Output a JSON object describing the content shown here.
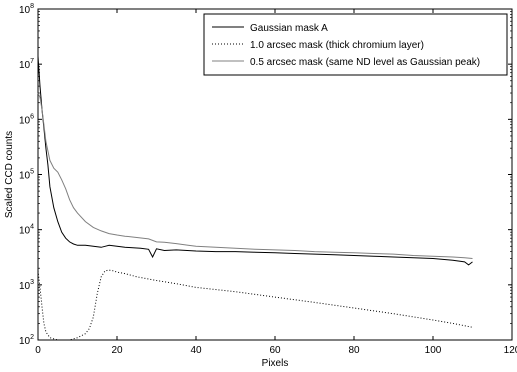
{
  "chart_data": {
    "type": "line",
    "xlabel": "Pixels",
    "ylabel": "Scaled CCD counts",
    "xlim": [
      0,
      120
    ],
    "ylim": [
      100,
      100000000
    ],
    "yscale": "log",
    "xticks": [
      0,
      20,
      40,
      60,
      80,
      100,
      120
    ],
    "yticks": [
      100,
      1000,
      10000,
      100000,
      1000000,
      10000000,
      100000000
    ],
    "ytick_labels": [
      {
        "base": "10",
        "exp": "2"
      },
      {
        "base": "10",
        "exp": "3"
      },
      {
        "base": "10",
        "exp": "4"
      },
      {
        "base": "10",
        "exp": "5"
      },
      {
        "base": "10",
        "exp": "6"
      },
      {
        "base": "10",
        "exp": "7"
      },
      {
        "base": "10",
        "exp": "8"
      }
    ],
    "grid": false,
    "legend_position": "top-right",
    "series": [
      {
        "name": "Gaussian mask A",
        "color": "#000000",
        "style": "solid",
        "x": [
          0,
          0.5,
          1,
          1.5,
          2,
          2.5,
          3,
          4,
          5,
          6,
          7,
          8,
          9,
          10,
          12,
          14,
          16,
          17,
          18,
          20,
          22,
          24,
          26,
          28,
          29,
          30,
          32,
          35,
          40,
          45,
          50,
          55,
          60,
          65,
          70,
          75,
          80,
          85,
          90,
          95,
          100,
          105,
          108,
          109,
          110
        ],
        "y": [
          14000000,
          4000000,
          1500000,
          700000,
          300000,
          150000,
          60000,
          25000,
          14000,
          9000,
          7000,
          6000,
          5500,
          5200,
          5200,
          5000,
          4800,
          5000,
          5200,
          5000,
          4800,
          4700,
          4600,
          4400,
          3200,
          4500,
          4200,
          4300,
          4100,
          4000,
          4000,
          3900,
          3800,
          3700,
          3600,
          3500,
          3400,
          3300,
          3200,
          3100,
          3000,
          2800,
          2600,
          2300,
          2600
        ]
      },
      {
        "name": "1.0 arcsec mask (thick chromium layer)",
        "color": "#000000",
        "style": "dotted",
        "x": [
          0,
          0.5,
          1,
          1.5,
          2,
          3,
          4,
          5,
          6,
          8,
          10,
          12,
          13,
          14,
          15,
          16,
          17,
          18,
          19,
          20,
          22,
          25,
          30,
          35,
          40,
          50,
          60,
          70,
          80,
          90,
          100,
          105,
          110
        ],
        "y": [
          1800,
          900,
          400,
          200,
          140,
          110,
          105,
          100,
          100,
          100,
          110,
          130,
          160,
          260,
          700,
          1400,
          1800,
          1850,
          1800,
          1700,
          1600,
          1400,
          1200,
          1050,
          900,
          750,
          600,
          480,
          380,
          300,
          230,
          200,
          170
        ]
      },
      {
        "name": "0.5 arcsec mask (same ND level as Gaussian peak)",
        "color": "#808080",
        "style": "solid",
        "x": [
          0,
          0.5,
          1,
          1.5,
          2,
          3,
          4,
          5,
          6,
          7,
          8,
          9,
          10,
          12,
          14,
          16,
          18,
          20,
          22,
          25,
          28,
          30,
          32,
          35,
          38,
          40,
          45,
          50,
          55,
          60,
          65,
          70,
          75,
          80,
          85,
          90,
          95,
          100,
          105,
          108,
          110
        ],
        "y": [
          3000000,
          2500000,
          1500000,
          800000,
          400000,
          180000,
          130000,
          110000,
          80000,
          55000,
          35000,
          25000,
          20000,
          14000,
          11000,
          9500,
          8500,
          8000,
          7600,
          7200,
          6800,
          6000,
          5900,
          5600,
          5200,
          5000,
          4800,
          4600,
          4400,
          4300,
          4200,
          4000,
          3900,
          3800,
          3700,
          3600,
          3400,
          3300,
          3200,
          3100,
          3000
        ]
      }
    ]
  }
}
